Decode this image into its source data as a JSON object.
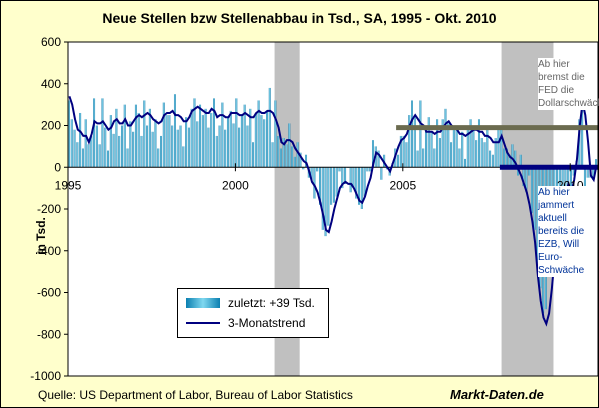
{
  "title": "Neue Stellen bzw Stellenabbau in Tsd., SA, 1995 - Okt. 2010",
  "ylabel": "in Tsd.",
  "source": "Quelle: US Department of Labor, Bureau of Labor Statistics",
  "brand": "Markt-Daten.de",
  "note_top": "Ab hier bremst die FED die Dollarschwäche",
  "note_bottom": "Ab hier jammert aktuell bereits die EZB, Will Euro-Schwäche",
  "legend": [
    {
      "label": "zuletzt: +39 Tsd.",
      "kind": "bar"
    },
    {
      "label": "3-Monatstrend",
      "kind": "line"
    }
  ],
  "colors": {
    "background": "#ffffcc",
    "bar": "#1a9ccc",
    "trend": "#000080",
    "recession": "#c0c0c0",
    "fed_line": "#6b6b4f",
    "ezb_line": "#000080"
  },
  "chart_data": {
    "type": "bar",
    "title": "Neue Stellen bzw Stellenabbau in Tsd., SA, 1995 - Okt. 2010",
    "ylabel": "in Tsd.",
    "ylim": [
      -1000,
      600
    ],
    "yticks": [
      600,
      400,
      200,
      0,
      -200,
      -400,
      -600,
      -800,
      -1000
    ],
    "xticks": [
      "1995",
      "2000",
      "2005",
      "2010"
    ],
    "xrange": [
      1995.0,
      2010.83
    ],
    "recessions": [
      [
        2001.17,
        2001.92
      ],
      [
        2007.95,
        2009.5
      ]
    ],
    "hlines": [
      {
        "y": 190,
        "from": 2004.8,
        "to": 2010.83
      },
      {
        "y": 0,
        "from": 2007.9,
        "to": 2010.83
      }
    ],
    "series": [
      {
        "name": "zuletzt: +39 Tsd.",
        "kind": "bar",
        "x_start": 1995.0,
        "step": 0.0833,
        "values": [
          320,
          230,
          180,
          120,
          260,
          90,
          230,
          110,
          150,
          330,
          200,
          110,
          330,
          190,
          80,
          250,
          160,
          280,
          150,
          200,
          300,
          90,
          220,
          170,
          300,
          260,
          150,
          320,
          200,
          280,
          170,
          230,
          90,
          150,
          310,
          250,
          250,
          200,
          350,
          180,
          200,
          100,
          240,
          190,
          280,
          330,
          220,
          300,
          250,
          280,
          190,
          260,
          330,
          150,
          200,
          310,
          180,
          240,
          270,
          210,
          330,
          190,
          250,
          300,
          200,
          280,
          120,
          260,
          320,
          250,
          230,
          270,
          380,
          120,
          320,
          150,
          90,
          140,
          110,
          210,
          100,
          50,
          120,
          70,
          -10,
          60,
          -50,
          -60,
          -150,
          -20,
          -180,
          -300,
          -330,
          -280,
          -180,
          -170,
          -140,
          -20,
          -100,
          -80,
          0,
          -120,
          -100,
          -150,
          -180,
          -200,
          -140,
          -20,
          -20,
          130,
          100,
          80,
          -60,
          60,
          -10,
          -40,
          20,
          90,
          60,
          150,
          150,
          120,
          250,
          320,
          240,
          80,
          320,
          90,
          200,
          240,
          170,
          90,
          230,
          140,
          230,
          280,
          210,
          120,
          190,
          190,
          90,
          170,
          40,
          200,
          230,
          180,
          130,
          230,
          140,
          120,
          200,
          80,
          60,
          140,
          180,
          200,
          90,
          90,
          60,
          110,
          80,
          -40,
          60,
          -90,
          -120,
          -40,
          -220,
          -300,
          -460,
          -580,
          -700,
          -680,
          -500,
          -400,
          -420,
          -360,
          -340,
          -220,
          -200,
          -170,
          -260,
          -40,
          30,
          230,
          430,
          -175,
          -50,
          -50,
          -60,
          39
        ]
      },
      {
        "name": "3-Monatstrend",
        "kind": "line",
        "x_start": 1995.0,
        "step": 0.0833,
        "values": [
          340,
          300,
          230,
          180,
          170,
          150,
          150,
          120,
          160,
          220,
          210,
          210,
          220,
          200,
          180,
          190,
          220,
          230,
          210,
          210,
          230,
          200,
          200,
          220,
          240,
          250,
          240,
          250,
          260,
          250,
          230,
          220,
          210,
          220,
          250,
          260,
          260,
          270,
          250,
          250,
          240,
          220,
          220,
          240,
          270,
          280,
          290,
          280,
          270,
          260,
          260,
          280,
          270,
          240,
          250,
          250,
          240,
          240,
          260,
          260,
          260,
          250,
          250,
          260,
          250,
          240,
          240,
          260,
          270,
          260,
          260,
          270,
          270,
          260,
          230,
          190,
          120,
          110,
          130,
          130,
          120,
          90,
          70,
          50,
          30,
          20,
          -20,
          -70,
          -90,
          -120,
          -170,
          -230,
          -300,
          -310,
          -260,
          -200,
          -150,
          -100,
          -80,
          -70,
          -80,
          -80,
          -100,
          -130,
          -160,
          -170,
          -140,
          -90,
          -50,
          20,
          70,
          60,
          40,
          20,
          0,
          -20,
          20,
          60,
          100,
          130,
          140,
          160,
          200,
          230,
          250,
          230,
          210,
          200,
          170,
          170,
          170,
          160,
          170,
          170,
          190,
          210,
          220,
          200,
          190,
          180,
          160,
          160,
          150,
          160,
          170,
          180,
          180,
          170,
          170,
          150,
          150,
          140,
          120,
          120,
          120,
          150,
          110,
          70,
          50,
          40,
          20,
          -10,
          -40,
          -80,
          -120,
          -180,
          -260,
          -360,
          -520,
          -640,
          -720,
          -750,
          -700,
          -580,
          -430,
          -330,
          -270,
          -180,
          -120,
          -80,
          -120,
          -60,
          40,
          200,
          310,
          250,
          120,
          -40,
          -60,
          10
        ]
      }
    ]
  }
}
